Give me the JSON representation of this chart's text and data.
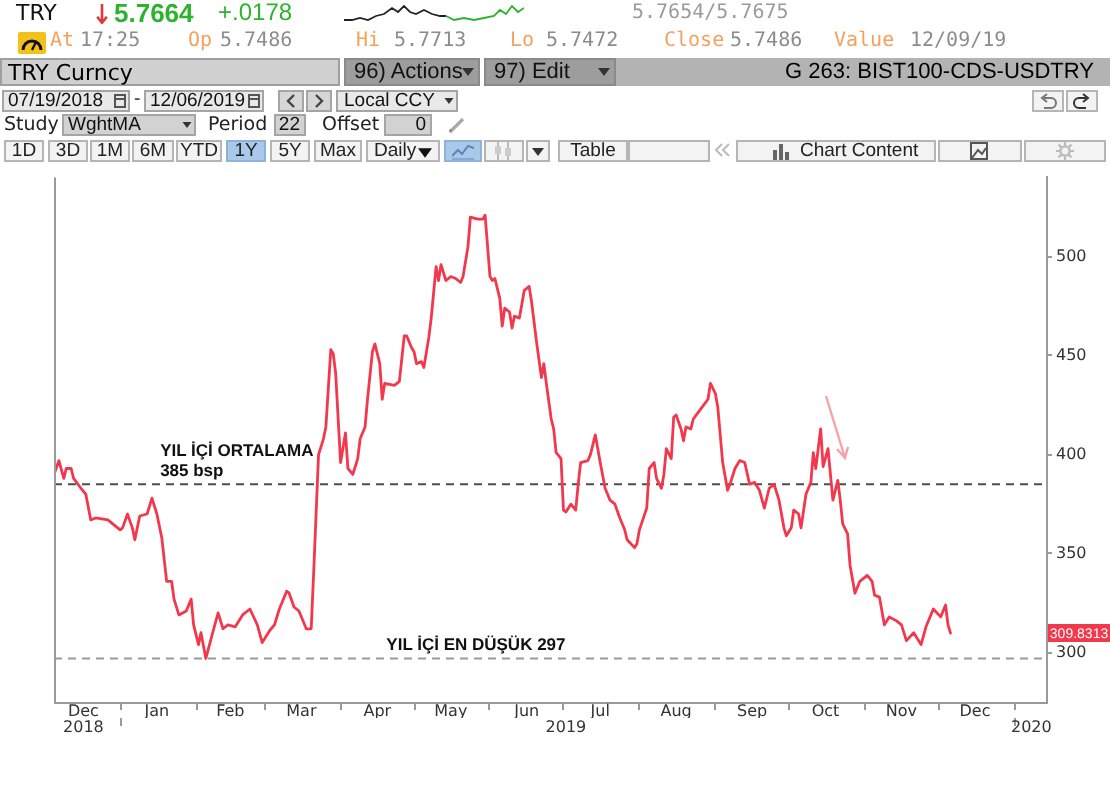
{
  "chart_data": {
    "type": "line",
    "title": "G 263: BIST100-CDS-USDTRY",
    "annotations": [
      "TRY",
      "5.7664",
      "+.0178",
      "5.7654/5.7675",
      "At",
      "17:25",
      "Op",
      "5.7486",
      "Hi",
      "5.7713",
      "Lo",
      "5.7472",
      "Close",
      "5.7486",
      "Value",
      "12/09/19",
      "TRY Curncy",
      "96) Actions",
      "97) Edit",
      "07/19/2018",
      "-",
      "12/06/2019",
      "Local CCY",
      "Study",
      "WghtMA",
      "Period",
      "22",
      "Offset",
      "0",
      "1D",
      "3D",
      "1M",
      "6M",
      "YTD",
      "1Y",
      "5Y",
      "Max",
      "Daily",
      "Table",
      "Chart Content",
      "309.8313"
    ],
    "x": [
      "2018-12-05",
      "2018-12-07",
      "2018-12-09",
      "2018-12-10",
      "2018-12-12",
      "2018-12-13",
      "2018-12-16",
      "2018-12-18",
      "2018-12-20",
      "2018-12-22",
      "2018-12-27",
      "2018-12-29",
      "2019-01-01",
      "2019-01-02",
      "2019-01-04",
      "2019-01-06",
      "2019-01-07",
      "2019-01-09",
      "2019-01-12",
      "2019-01-14",
      "2019-01-16",
      "2019-01-18",
      "2019-01-20",
      "2019-01-22",
      "2019-01-23",
      "2019-01-25",
      "2019-01-28",
      "2019-01-30",
      "2019-01-31",
      "2019-02-02",
      "2019-02-03",
      "2019-02-05",
      "2019-02-08",
      "2019-02-10",
      "2019-02-12",
      "2019-02-14",
      "2019-02-17",
      "2019-02-20",
      "2019-02-23",
      "2019-02-26",
      "2019-02-28",
      "2019-03-03",
      "2019-03-05",
      "2019-03-07",
      "2019-03-10",
      "2019-03-11",
      "2019-03-13",
      "2019-03-15",
      "2019-03-18",
      "2019-03-20",
      "2019-03-21",
      "2019-03-23",
      "2019-03-25",
      "2019-03-26",
      "2019-03-28",
      "2019-03-29",
      "2019-03-30",
      "2019-04-01",
      "2019-04-03",
      "2019-04-04",
      "2019-04-06",
      "2019-04-08",
      "2019-04-09",
      "2019-04-11",
      "2019-04-12",
      "2019-04-14",
      "2019-04-15",
      "2019-04-17",
      "2019-04-18",
      "2019-04-19",
      "2019-04-23",
      "2019-04-25",
      "2019-04-27",
      "2019-04-28",
      "2019-04-30",
      "2019-05-01",
      "2019-05-02",
      "2019-05-04",
      "2019-05-05",
      "2019-05-07",
      "2019-05-08",
      "2019-05-10",
      "2019-05-11",
      "2019-05-12",
      "2019-05-14",
      "2019-05-16",
      "2019-05-18",
      "2019-05-20",
      "2019-05-21",
      "2019-05-23",
      "2019-05-24",
      "2019-05-27",
      "2019-05-29",
      "2019-05-30",
      "2019-06-01",
      "2019-06-02",
      "2019-06-03",
      "2019-06-05",
      "2019-06-06",
      "2019-06-07",
      "2019-06-09",
      "2019-06-10",
      "2019-06-11",
      "2019-06-13",
      "2019-06-15",
      "2019-06-17",
      "2019-06-18",
      "2019-06-20",
      "2019-06-22",
      "2019-06-23",
      "2019-06-24",
      "2019-06-26",
      "2019-06-27",
      "2019-06-28",
      "2019-06-30",
      "2019-07-01",
      "2019-07-02",
      "2019-07-04",
      "2019-07-06",
      "2019-07-07",
      "2019-07-08",
      "2019-07-11",
      "2019-07-12",
      "2019-07-14",
      "2019-07-16",
      "2019-07-18",
      "2019-07-20",
      "2019-07-22",
      "2019-07-24",
      "2019-07-26",
      "2019-07-27",
      "2019-07-30",
      "2019-07-31",
      "2019-08-01",
      "2019-08-04",
      "2019-08-05",
      "2019-08-07",
      "2019-08-08",
      "2019-08-10",
      "2019-08-11",
      "2019-08-12",
      "2019-08-14",
      "2019-08-15",
      "2019-08-16",
      "2019-08-18",
      "2019-08-19",
      "2019-08-20",
      "2019-08-22",
      "2019-08-23",
      "2019-08-26",
      "2019-08-29",
      "2019-08-30",
      "2019-09-01",
      "2019-09-02",
      "2019-09-04",
      "2019-09-06",
      "2019-09-07",
      "2019-09-09",
      "2019-09-11",
      "2019-09-13",
      "2019-09-15",
      "2019-09-17",
      "2019-09-19",
      "2019-09-21",
      "2019-09-23",
      "2019-09-25",
      "2019-09-27",
      "2019-09-29",
      "2019-09-30",
      "2019-10-02",
      "2019-10-03",
      "2019-10-05",
      "2019-10-06",
      "2019-10-08",
      "2019-10-10",
      "2019-10-11",
      "2019-10-12",
      "2019-10-14",
      "2019-10-15",
      "2019-10-17",
      "2019-10-19",
      "2019-10-21",
      "2019-10-22",
      "2019-10-23",
      "2019-10-25",
      "2019-10-26",
      "2019-10-28",
      "2019-10-30",
      "2019-11-02",
      "2019-11-04",
      "2019-11-05",
      "2019-11-07",
      "2019-11-09",
      "2019-11-11",
      "2019-11-14",
      "2019-11-16",
      "2019-11-18",
      "2019-11-21",
      "2019-11-24",
      "2019-11-26",
      "2019-11-29",
      "2019-12-02",
      "2019-12-04",
      "2019-12-05",
      "2019-12-06"
    ],
    "series": [
      {
        "color": "#f2384c",
        "values": [
          390,
          397,
          388,
          393,
          393,
          388,
          383,
          380,
          367,
          368,
          367,
          365,
          362,
          363,
          370,
          363,
          357,
          369,
          370,
          378,
          370,
          358,
          336,
          336,
          327,
          319,
          321,
          327,
          314,
          304,
          310,
          297,
          311,
          320,
          312,
          314,
          313,
          319,
          322,
          314,
          305,
          311,
          314,
          322,
          331,
          330,
          323,
          321,
          312,
          312,
          340,
          400,
          408,
          414,
          453,
          451,
          441,
          396,
          411,
          393,
          390,
          398,
          408,
          414,
          428,
          452,
          456,
          446,
          428,
          436,
          435,
          437,
          460,
          460,
          454,
          452,
          446,
          447,
          444,
          459,
          469,
          495,
          488,
          496,
          488,
          490,
          489,
          487,
          490,
          505,
          520,
          519,
          519,
          521,
          490,
          488,
          489,
          479,
          465,
          474,
          472,
          464,
          470,
          469,
          483,
          485,
          477,
          457,
          439,
          446,
          436,
          418,
          413,
          401,
          398,
          372,
          371,
          375,
          372,
          385,
          396,
          397,
          400,
          410,
          396,
          383,
          377,
          375,
          368,
          362,
          357,
          353,
          355,
          362,
          373,
          393,
          396,
          388,
          383,
          390,
          403,
          398,
          419,
          420,
          413,
          407,
          414,
          413,
          418,
          423,
          428,
          436,
          431,
          424,
          396,
          382,
          385,
          393,
          397,
          396,
          385,
          386,
          382,
          373,
          383,
          385,
          377,
          363,
          359,
          363,
          372,
          370,
          363,
          380,
          386,
          401,
          393,
          413,
          394,
          403,
          377,
          387,
          377,
          365,
          360,
          344,
          330,
          336,
          339,
          336,
          329,
          328,
          314,
          318,
          316,
          314,
          306,
          310,
          304,
          313,
          322,
          318,
          324,
          314,
          309.8313
        ]
      }
    ],
    "xlim": [
      "2018-12-05",
      "2020-01-14"
    ],
    "xticks": [
      {
        "value": "2018-12-17",
        "label": "Dec"
      },
      {
        "value": "2019-01-01",
        "label": null
      },
      {
        "value": "2019-01-16",
        "label": "Jan"
      },
      {
        "value": "2019-02-01",
        "label": null
      },
      {
        "value": "2019-02-15",
        "label": "Feb"
      },
      {
        "value": "2019-03-01",
        "label": null
      },
      {
        "value": "2019-03-16",
        "label": "Mar"
      },
      {
        "value": "2019-04-01",
        "label": null
      },
      {
        "value": "2019-04-16",
        "label": "Apr"
      },
      {
        "value": "2019-05-01",
        "label": null
      },
      {
        "value": "2019-05-16",
        "label": "May"
      },
      {
        "value": "2019-06-01",
        "label": null
      },
      {
        "value": "2019-06-16",
        "label": "Jun"
      },
      {
        "value": "2019-07-01",
        "label": null
      },
      {
        "value": "2019-07-16",
        "label": "Jul"
      },
      {
        "value": "2019-08-01",
        "label": null
      },
      {
        "value": "2019-08-16",
        "label": "Aug"
      },
      {
        "value": "2019-09-01",
        "label": null
      },
      {
        "value": "2019-09-16",
        "label": "Sep"
      },
      {
        "value": "2019-10-01",
        "label": null
      },
      {
        "value": "2019-10-16",
        "label": "Oct"
      },
      {
        "value": "2019-11-01",
        "label": null
      },
      {
        "value": "2019-11-16",
        "label": "Nov"
      },
      {
        "value": "2019-12-01",
        "label": null
      },
      {
        "value": "2019-12-16",
        "label": "Dec"
      },
      {
        "value": "2020-01-01",
        "label": null
      }
    ],
    "x2lim": [
      "2018-12-05",
      "2020-01-14"
    ],
    "x2ticks": [
      {
        "value": "2018-12-17",
        "label": "2018"
      },
      {
        "value": "2019-01-01",
        "label": null
      },
      {
        "value": "2019-07-02",
        "label": "2019"
      },
      {
        "value": "2020-01-01",
        "label": null
      },
      {
        "value": "2020-01-08",
        "label": "2020"
      }
    ],
    "ylim": [
      275,
      540
    ],
    "yticks": [
      300,
      350,
      400,
      450,
      500
    ],
    "ref_lines": [
      {
        "axis": "y",
        "value": 385,
        "label": "YIL İÇİ ORTALAMA\n385 bsp",
        "color": "#4d4d4d",
        "line_style": "dashed"
      },
      {
        "axis": "y",
        "value": 297,
        "label": "YIL İÇİ EN DÜŞÜK 297",
        "color": "#9a9a9a",
        "line_style": "dashed"
      }
    ],
    "grid": false,
    "legend": false
  }
}
